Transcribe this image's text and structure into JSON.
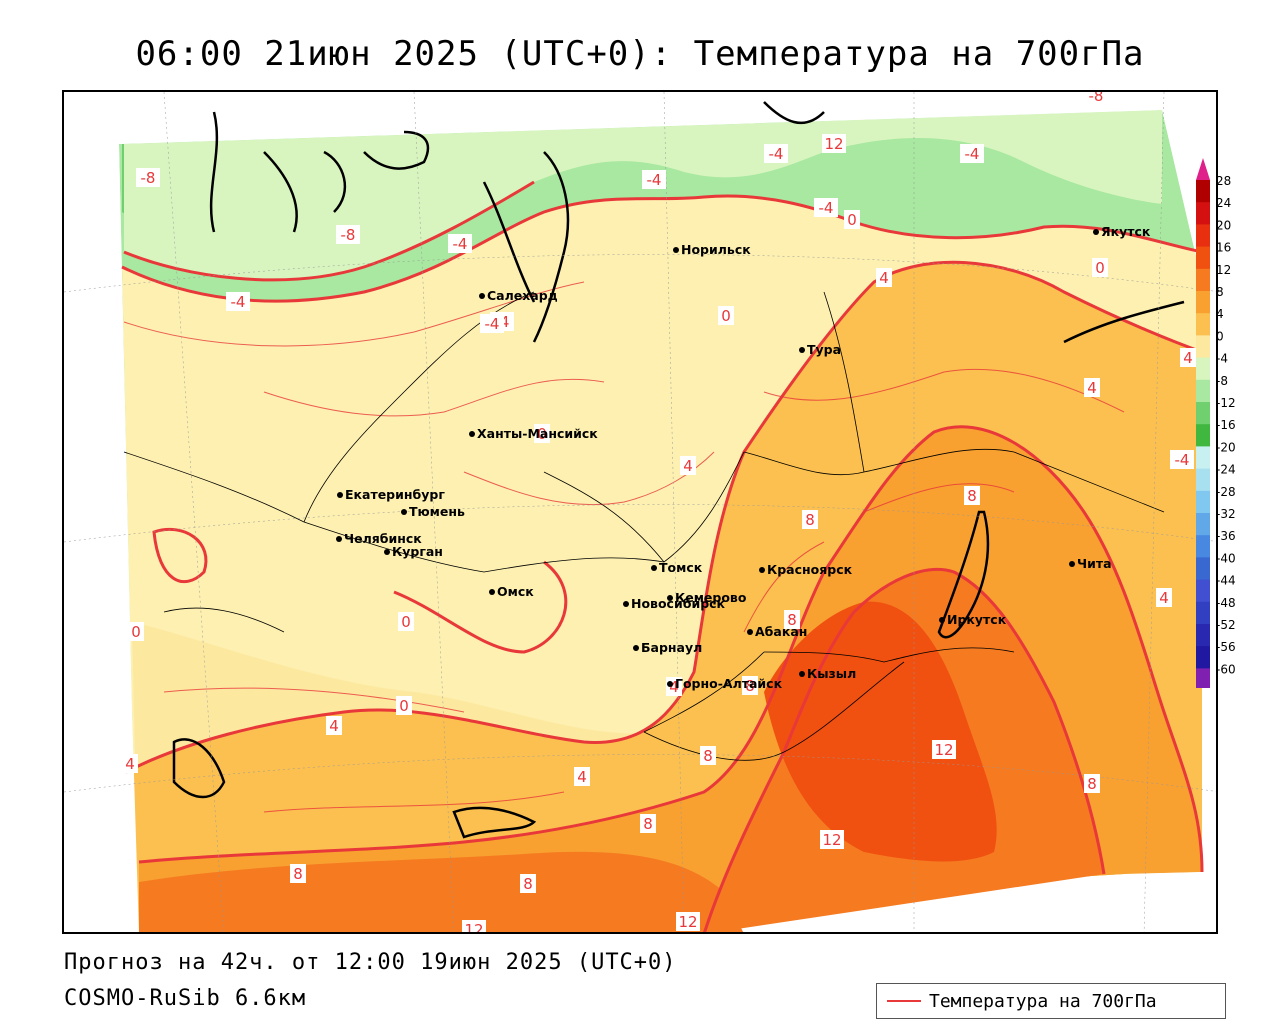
{
  "header": {
    "title": "06:00 21июн 2025 (UTC+0): Температура на 700гПа"
  },
  "footer": {
    "forecast_line": "Прогноз на 42ч. от 12:00 19июн 2025 (UTC+0)",
    "model_line": "COSMO-RuSib 6.6км"
  },
  "legend": {
    "entry": "Температура на 700гПа",
    "line_color": "#e8383a"
  },
  "colorbar": {
    "labels": [
      "28",
      "24",
      "20",
      "16",
      "12",
      "8",
      "4",
      "0",
      "-4",
      "-8",
      "-12",
      "-16",
      "-20",
      "-24",
      "-28",
      "-32",
      "-36",
      "-40",
      "-44",
      "-48",
      "-52",
      "-56",
      "-60"
    ],
    "colors": [
      "#b00000",
      "#d41010",
      "#e83010",
      "#f05010",
      "#f57a20",
      "#f8a030",
      "#fbc050",
      "#fde8a0",
      "#d8f5c0",
      "#a8e8a0",
      "#70d070",
      "#40b840",
      "#c8f0f0",
      "#a8e0f0",
      "#80c8f0",
      "#60a8e8",
      "#4888e0",
      "#3868d0",
      "#4050d0",
      "#3040c0",
      "#2828b0",
      "#2018a0",
      "#8020b0"
    ],
    "arrow_top_color": "#e0208a",
    "arrow_bottom_color": "#8030c0"
  },
  "map": {
    "background_color": "#ffffff",
    "cities": [
      {
        "name": "Якутск"
      },
      {
        "name": "Норильск"
      },
      {
        "name": "Салехард"
      },
      {
        "name": "Тура"
      },
      {
        "name": "Ханты-Мансийск"
      },
      {
        "name": "Екатеринбург"
      },
      {
        "name": "Тюмень"
      },
      {
        "name": "Челябинск"
      },
      {
        "name": "Курган"
      },
      {
        "name": "Омск"
      },
      {
        "name": "Новосибирск"
      },
      {
        "name": "Томск"
      },
      {
        "name": "Кемерово"
      },
      {
        "name": "Красноярск"
      },
      {
        "name": "Барнаул"
      },
      {
        "name": "Абакан"
      },
      {
        "name": "Горно-Алтайск"
      },
      {
        "name": "Кызыл"
      },
      {
        "name": "Иркутск"
      },
      {
        "name": "Чита"
      }
    ],
    "isotherm_labels": [
      "-8",
      "-8",
      "-8",
      "-4",
      "-4",
      "-4",
      "-4",
      "-4",
      "-4",
      "-4",
      "0",
      "0",
      "0",
      "0",
      "0",
      "0",
      "0",
      "4",
      "4",
      "4",
      "4",
      "4",
      "4",
      "4",
      "4",
      "4",
      "8",
      "8",
      "8",
      "8",
      "8",
      "8",
      "8",
      "8",
      "8",
      "12",
      "12",
      "12",
      "12",
      "12",
      "-4",
      "-4"
    ]
  }
}
